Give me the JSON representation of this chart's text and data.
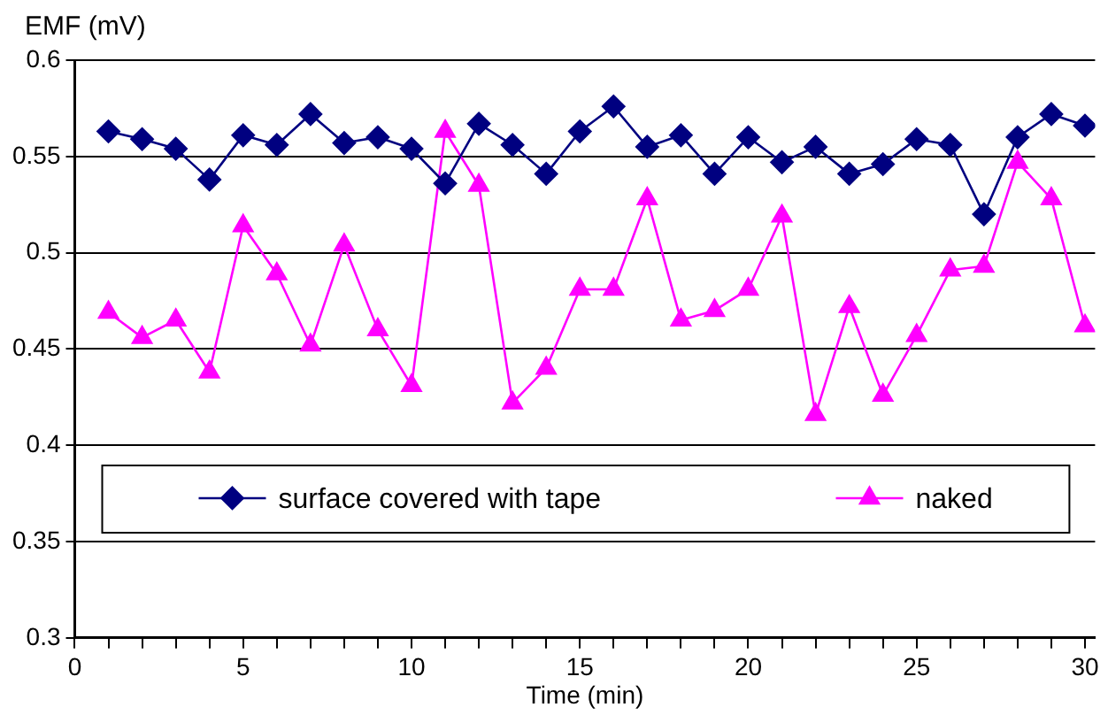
{
  "chart_data": {
    "type": "line",
    "xlabel": "Time (min)",
    "ylabel": "EMF (mV)",
    "x": [
      1,
      2,
      3,
      4,
      5,
      6,
      7,
      8,
      9,
      10,
      11,
      12,
      13,
      14,
      15,
      16,
      17,
      18,
      19,
      20,
      21,
      22,
      23,
      24,
      25,
      26,
      27,
      28,
      29,
      30
    ],
    "series": [
      {
        "name": "surface covered with tape",
        "color": "#000080",
        "marker": "diamond",
        "values": [
          0.563,
          0.559,
          0.554,
          0.538,
          0.561,
          0.556,
          0.572,
          0.557,
          0.56,
          0.554,
          0.536,
          0.567,
          0.556,
          0.541,
          0.563,
          0.576,
          0.555,
          0.561,
          0.541,
          0.56,
          0.547,
          0.555,
          0.541,
          0.546,
          0.559,
          0.556,
          0.52,
          0.56,
          0.572,
          0.566
        ]
      },
      {
        "name": "naked",
        "color": "#ff00ff",
        "marker": "triangle",
        "values": [
          0.469,
          0.456,
          0.465,
          0.438,
          0.514,
          0.489,
          0.452,
          0.504,
          0.46,
          0.431,
          0.563,
          0.535,
          0.422,
          0.44,
          0.481,
          0.481,
          0.528,
          0.465,
          0.47,
          0.481,
          0.519,
          0.416,
          0.472,
          0.426,
          0.457,
          0.491,
          0.493,
          0.547,
          0.528,
          0.462
        ]
      }
    ],
    "xlim": [
      0,
      30.3
    ],
    "xticks": [
      0,
      {
        "value": 1,
        "label": null
      },
      {
        "value": 2,
        "label": null
      },
      {
        "value": 3,
        "label": null
      },
      {
        "value": 4,
        "label": null
      },
      5,
      {
        "value": 6,
        "label": null
      },
      {
        "value": 7,
        "label": null
      },
      {
        "value": 8,
        "label": null
      },
      {
        "value": 9,
        "label": null
      },
      10,
      {
        "value": 11,
        "label": null
      },
      {
        "value": 12,
        "label": null
      },
      {
        "value": 13,
        "label": null
      },
      {
        "value": 14,
        "label": null
      },
      15,
      {
        "value": 16,
        "label": null
      },
      {
        "value": 17,
        "label": null
      },
      {
        "value": 18,
        "label": null
      },
      {
        "value": 19,
        "label": null
      },
      20,
      {
        "value": 21,
        "label": null
      },
      {
        "value": 22,
        "label": null
      },
      {
        "value": 23,
        "label": null
      },
      {
        "value": 24,
        "label": null
      },
      25,
      {
        "value": 26,
        "label": null
      },
      {
        "value": 27,
        "label": null
      },
      {
        "value": 28,
        "label": null
      },
      {
        "value": 29,
        "label": null
      },
      30
    ],
    "ylim": [
      0.3,
      0.6
    ],
    "yticks": [
      0.3,
      0.35,
      0.4,
      0.45,
      0.5,
      0.55,
      0.6
    ],
    "grid": "y",
    "legend": "bottom",
    "line_style": "solid"
  }
}
